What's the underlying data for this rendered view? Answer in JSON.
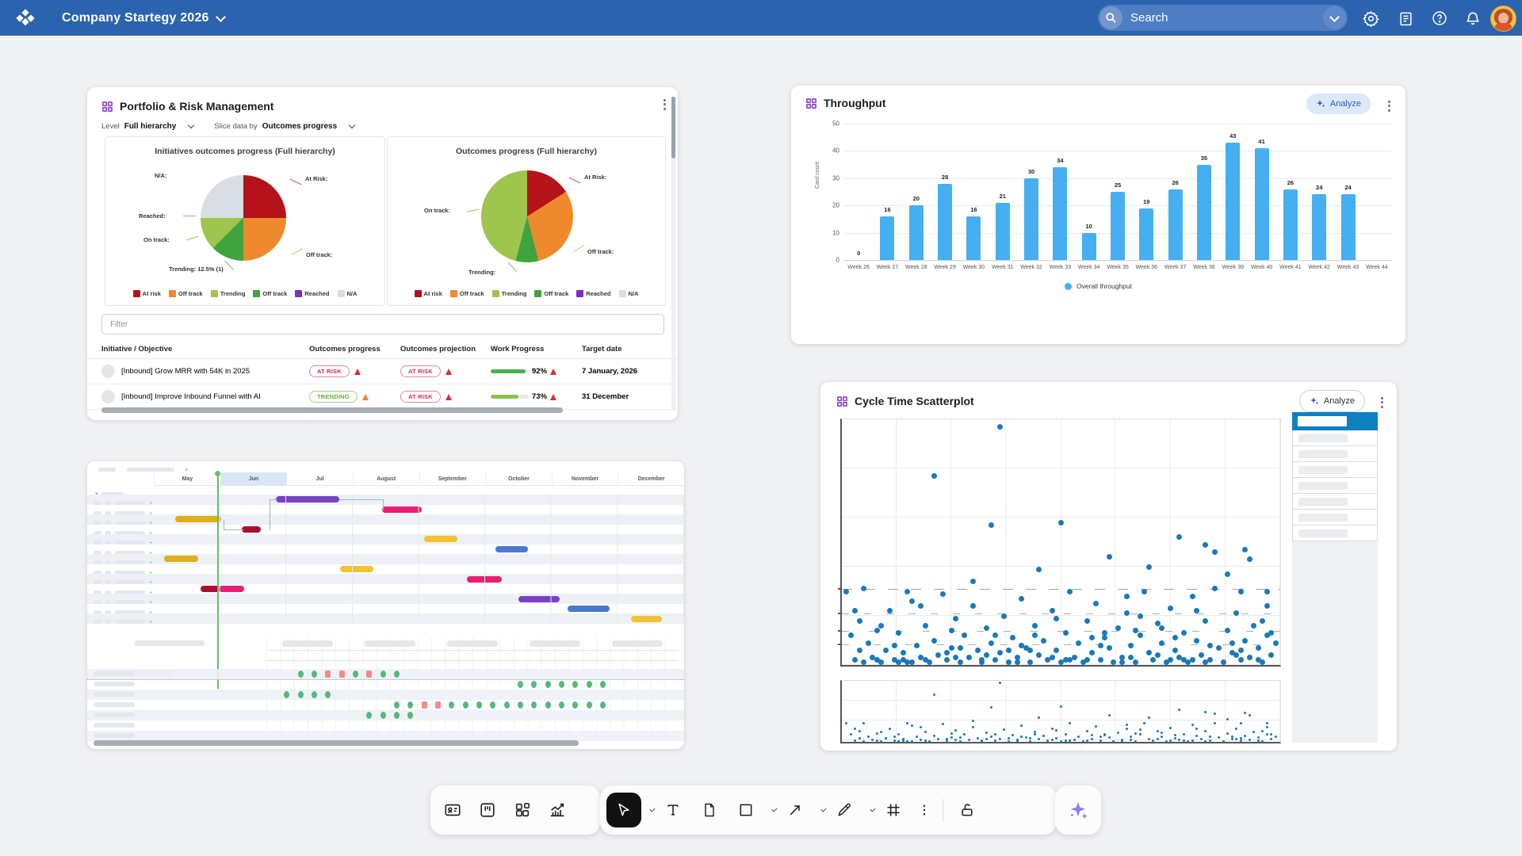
{
  "topbar": {
    "title": "Company Startegy 2026",
    "search_placeholder": "Search"
  },
  "portfolio": {
    "title": "Portfolio & Risk Management",
    "level_label": "Level",
    "level_value": "Full hierarchy",
    "slice_label": "Slice data by",
    "slice_value": "Outcomes progress",
    "filter_placeholder": "Filter",
    "legend": [
      {
        "label": "At risk",
        "color": "#b5121b"
      },
      {
        "label": "Off track",
        "color": "#ef8a2c"
      },
      {
        "label": "Trending",
        "color": "#9ec54d"
      },
      {
        "label": "Off track",
        "color": "#3fa33f"
      },
      {
        "label": "Reached",
        "color": "#7b2fbe"
      },
      {
        "label": "N/A",
        "color": "#d9dee5"
      }
    ],
    "pie_left": {
      "title": "Initiatives outcomes progress (Full hierarchy)",
      "slices": [
        {
          "label": "At Risk",
          "value": 25,
          "color": "#b5121b"
        },
        {
          "label": "Off track",
          "value": 25,
          "color": "#ef8a2c"
        },
        {
          "label": "Trending",
          "value": 12.5,
          "color": "#3fa33f"
        },
        {
          "label": "On track",
          "value": 12.5,
          "color": "#9ec54d"
        },
        {
          "label": "N/A",
          "value": 25,
          "color": "#d9dee5"
        }
      ],
      "callouts": {
        "na": "N/A:",
        "at_risk": "At Risk:",
        "reached": "Reached:",
        "on_track": "On track:",
        "trending": "Trending:  12.5% (1)",
        "off_track": "Off track:"
      }
    },
    "pie_right": {
      "title": "Outcomes progress (Full hierarchy)",
      "slices": [
        {
          "label": "At Risk",
          "value": 16,
          "color": "#b5121b"
        },
        {
          "label": "Off track",
          "value": 30,
          "color": "#ef8a2c"
        },
        {
          "label": "Trending",
          "value": 8,
          "color": "#3fa33f"
        },
        {
          "label": "On track",
          "value": 46,
          "color": "#9ec54d"
        }
      ],
      "callouts": {
        "at_risk": "At Risk:",
        "on_track": "On track:",
        "off_track": "Off track:",
        "trending": "Trending:"
      }
    },
    "table": {
      "headers": [
        "Initiative / Objective",
        "Outcomes progress",
        "Outcomes projection",
        "Work Progress",
        "Target date"
      ],
      "rows": [
        {
          "name": "[Inbound] Grow MRR with 54K in 2025",
          "progress_badge": "AT RISK",
          "projection_badge": "AT RISK",
          "work_pct": "92%",
          "work_value": 92,
          "work_color": "#4caf50",
          "target": "7 January, 2026"
        },
        {
          "name": "[Inbound] Improve Inbound Funnel with AI",
          "progress_badge": "TRENDING",
          "projection_badge": "AT RISK",
          "work_pct": "73%",
          "work_value": 73,
          "work_color": "#8bc34a",
          "target": "31 December"
        }
      ]
    }
  },
  "throughput": {
    "title": "Throughput",
    "analyze_label": "Analyze",
    "ylabel": "Card count",
    "yticks": [
      0,
      10,
      20,
      30,
      40,
      50
    ],
    "ymax": 50,
    "categories": [
      "Week 26",
      "Week 27",
      "Week 28",
      "Week 29",
      "Week 30",
      "Week 31",
      "Week 32",
      "Week 33",
      "Week 34",
      "Week 35",
      "Week 36",
      "Week 37",
      "Week 38",
      "Week 39",
      "Week 40",
      "Week 41",
      "Week 42",
      "Week 43",
      "Week 44"
    ],
    "values": [
      0,
      16,
      20,
      28,
      16,
      21,
      30,
      34,
      10,
      25,
      19,
      26,
      35,
      43,
      41,
      26,
      24,
      24,
      null
    ],
    "legend": "Overall throughput",
    "bar_color": "#45aff2",
    "chart_type": "bar"
  },
  "gantt": {
    "months": [
      "May",
      "Jun",
      "Jul",
      "August",
      "September",
      "October",
      "November",
      "December"
    ],
    "highlight_month_index": 1,
    "today_pos_pct": 12,
    "palette": {
      "purple": "#7b3fc8",
      "pink": "#e91e70",
      "yellow": "#f2c230",
      "yellow_dark": "#dfae1b",
      "dark_red": "#a8112e",
      "blue": "#4a78d2"
    },
    "bars": [
      {
        "row": 0,
        "start": 23,
        "end": 35,
        "color": "purple"
      },
      {
        "row": 1,
        "start": 43,
        "end": 50.5,
        "color": "pink"
      },
      {
        "row": 2,
        "start": 4,
        "end": 12.7,
        "color": "yellow_dark"
      },
      {
        "row": 3,
        "start": 16.6,
        "end": 20.2,
        "color": "dark_red"
      },
      {
        "row": 4,
        "start": 51,
        "end": 57.3,
        "color": "yellow"
      },
      {
        "row": 5,
        "start": 64.4,
        "end": 70.5,
        "color": "blue"
      },
      {
        "row": 6,
        "start": 2,
        "end": 8.4,
        "color": "yellow_dark"
      },
      {
        "row": 7,
        "start": 35.2,
        "end": 41.4,
        "color": "yellow"
      },
      {
        "row": 8,
        "start": 59.1,
        "end": 65.6,
        "color": "pink"
      },
      {
        "row": 9,
        "start": 8.8,
        "end": 12.5,
        "color": "dark_red"
      },
      {
        "row": 9,
        "start": 12.2,
        "end": 17.1,
        "color": "pink"
      },
      {
        "row": 10,
        "start": 68.7,
        "end": 76.6,
        "color": "purple"
      },
      {
        "row": 11,
        "start": 78.1,
        "end": 85.9,
        "color": "blue"
      },
      {
        "row": 12,
        "start": 90,
        "end": 95.8,
        "color": "yellow"
      }
    ],
    "dot_colors": {
      "g": "#56b87b",
      "r": "#f28b8b"
    },
    "dot_rows": [
      {
        "row": 0,
        "cells": [
          [
            2,
            "g"
          ],
          [
            3,
            "g"
          ],
          [
            4,
            "r"
          ],
          [
            5,
            "r"
          ],
          [
            6,
            "g"
          ],
          [
            7,
            "r"
          ],
          [
            8,
            "g"
          ],
          [
            9,
            "g"
          ]
        ]
      },
      {
        "row": 1,
        "cells": [
          [
            18,
            "g"
          ],
          [
            19,
            "g"
          ],
          [
            20,
            "g"
          ],
          [
            21,
            "g"
          ],
          [
            22,
            "g"
          ],
          [
            23,
            "g"
          ],
          [
            24,
            "g"
          ]
        ]
      },
      {
        "row": 2,
        "cells": [
          [
            1,
            "g"
          ],
          [
            2,
            "g"
          ],
          [
            3,
            "g"
          ],
          [
            4,
            "g"
          ]
        ]
      },
      {
        "row": 3,
        "cells": [
          [
            9,
            "g"
          ],
          [
            10,
            "g"
          ],
          [
            11,
            "r"
          ],
          [
            12,
            "r"
          ],
          [
            13,
            "g"
          ],
          [
            14,
            "g"
          ],
          [
            15,
            "g"
          ],
          [
            16,
            "g"
          ],
          [
            17,
            "g"
          ],
          [
            18,
            "g"
          ],
          [
            19,
            "g"
          ],
          [
            20,
            "g"
          ],
          [
            21,
            "g"
          ],
          [
            22,
            "g"
          ],
          [
            23,
            "g"
          ],
          [
            24,
            "g"
          ]
        ]
      },
      {
        "row": 4,
        "cells": [
          [
            7,
            "g"
          ],
          [
            8,
            "g"
          ],
          [
            9,
            "g"
          ],
          [
            10,
            "g"
          ]
        ]
      },
      {
        "row": 5,
        "cells": []
      },
      {
        "row": 6,
        "cells": []
      }
    ]
  },
  "scatter": {
    "title": "Cycle Time Scatterplot",
    "analyze_label": "Analyze",
    "dot_color": "#1b79b8",
    "chart_type": "scatter",
    "percentile_lines": [
      30.6,
      20.5,
      13.5,
      8
    ],
    "points": [
      [
        2,
        12
      ],
      [
        3,
        2
      ],
      [
        4,
        18
      ],
      [
        4,
        6
      ],
      [
        5,
        1
      ],
      [
        6,
        9
      ],
      [
        7,
        3
      ],
      [
        8,
        14
      ],
      [
        8,
        2
      ],
      [
        9,
        1
      ],
      [
        10,
        6
      ],
      [
        11,
        22
      ],
      [
        12,
        2
      ],
      [
        12,
        8
      ],
      [
        13,
        13
      ],
      [
        14,
        5
      ],
      [
        14,
        2
      ],
      [
        15,
        1
      ],
      [
        15,
        30
      ],
      [
        16,
        26
      ],
      [
        16,
        1
      ],
      [
        17,
        8
      ],
      [
        18,
        3
      ],
      [
        18,
        24
      ],
      [
        19,
        16
      ],
      [
        20,
        1
      ],
      [
        21,
        77
      ],
      [
        21,
        10
      ],
      [
        22,
        4
      ],
      [
        23,
        29
      ],
      [
        24,
        2
      ],
      [
        24,
        5
      ],
      [
        25,
        7
      ],
      [
        25,
        14
      ],
      [
        26,
        19
      ],
      [
        26,
        3
      ],
      [
        27,
        1
      ],
      [
        28,
        12
      ],
      [
        29,
        3
      ],
      [
        30,
        24
      ],
      [
        30,
        34
      ],
      [
        31,
        6
      ],
      [
        32,
        1
      ],
      [
        32,
        2
      ],
      [
        33,
        15
      ],
      [
        33,
        4
      ],
      [
        34,
        57
      ],
      [
        34,
        9
      ],
      [
        35,
        2
      ],
      [
        36,
        97
      ],
      [
        36,
        5
      ],
      [
        37,
        20
      ],
      [
        38,
        1
      ],
      [
        38,
        6
      ],
      [
        39,
        11
      ],
      [
        40,
        3
      ],
      [
        40,
        1
      ],
      [
        41,
        27
      ],
      [
        41,
        8
      ],
      [
        42,
        7
      ],
      [
        43,
        1
      ],
      [
        44,
        16
      ],
      [
        44,
        12
      ],
      [
        45,
        39
      ],
      [
        45,
        4
      ],
      [
        46,
        10
      ],
      [
        47,
        2
      ],
      [
        48,
        22
      ],
      [
        48,
        3
      ],
      [
        49,
        6
      ],
      [
        49,
        19
      ],
      [
        50,
        1
      ],
      [
        50,
        58
      ],
      [
        51,
        13
      ],
      [
        52,
        30
      ],
      [
        52,
        2
      ],
      [
        53,
        3
      ],
      [
        54,
        9
      ],
      [
        55,
        1
      ],
      [
        56,
        18
      ],
      [
        56,
        2
      ],
      [
        57,
        5
      ],
      [
        57,
        11
      ],
      [
        58,
        25
      ],
      [
        59,
        2
      ],
      [
        60,
        11
      ],
      [
        60,
        13
      ],
      [
        61,
        44
      ],
      [
        61,
        7
      ],
      [
        62,
        1
      ],
      [
        63,
        15
      ],
      [
        64,
        3
      ],
      [
        64,
        1
      ],
      [
        65,
        21
      ],
      [
        65,
        28
      ],
      [
        66,
        8
      ],
      [
        66,
        3
      ],
      [
        67,
        1
      ],
      [
        68,
        12
      ],
      [
        68,
        20
      ],
      [
        69,
        30
      ],
      [
        70,
        40
      ],
      [
        70,
        5
      ],
      [
        71,
        2
      ],
      [
        72,
        17
      ],
      [
        72,
        4
      ],
      [
        73,
        9
      ],
      [
        73,
        15
      ],
      [
        74,
        1
      ],
      [
        75,
        23
      ],
      [
        76,
        6
      ],
      [
        76,
        11
      ],
      [
        77,
        52
      ],
      [
        77,
        3
      ],
      [
        78,
        13
      ],
      [
        78,
        2
      ],
      [
        79,
        1
      ],
      [
        80,
        28
      ],
      [
        80,
        2
      ],
      [
        81,
        10
      ],
      [
        81,
        22
      ],
      [
        82,
        4
      ],
      [
        83,
        49
      ],
      [
        83,
        18
      ],
      [
        84,
        2
      ],
      [
        84,
        8
      ],
      [
        85,
        31
      ],
      [
        85,
        46
      ],
      [
        86,
        7
      ],
      [
        87,
        1
      ],
      [
        88,
        37
      ],
      [
        88,
        14
      ],
      [
        89,
        5
      ],
      [
        89,
        9
      ],
      [
        90,
        21
      ],
      [
        90,
        4
      ],
      [
        91,
        2
      ],
      [
        91,
        30
      ],
      [
        92,
        10
      ],
      [
        92,
        47
      ],
      [
        93,
        43
      ],
      [
        93,
        3
      ],
      [
        94,
        16
      ],
      [
        95,
        7
      ],
      [
        95,
        2
      ],
      [
        96,
        1
      ],
      [
        96,
        18
      ],
      [
        97,
        24
      ],
      [
        97,
        12
      ],
      [
        97,
        30
      ],
      [
        98,
        4
      ],
      [
        99,
        9
      ],
      [
        1,
        30
      ],
      [
        5,
        31
      ],
      [
        3,
        22
      ],
      [
        9,
        16
      ],
      [
        13,
        1
      ],
      [
        19,
        2
      ],
      [
        27,
        7
      ],
      [
        35,
        12
      ],
      [
        43,
        6
      ],
      [
        51,
        2
      ],
      [
        59,
        8
      ],
      [
        67,
        14
      ],
      [
        75,
        2
      ],
      [
        83,
        1
      ],
      [
        91,
        6
      ],
      [
        98,
        13
      ]
    ]
  }
}
